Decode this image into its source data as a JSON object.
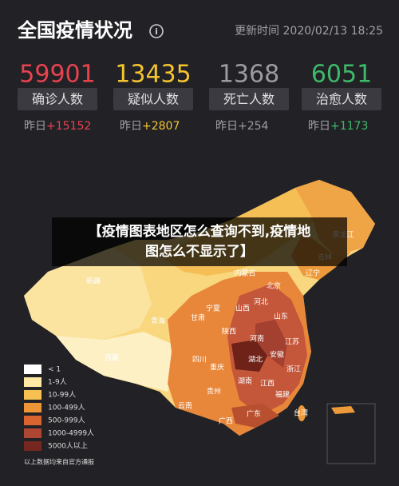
{
  "header": {
    "title": "全国疫情状况",
    "update_time": "更新时间 2020/02/13 18:25"
  },
  "stats": [
    {
      "value": "59901",
      "label": "确诊人数",
      "yesterday": "昨日",
      "delta": "+15152",
      "color": "#e8424f"
    },
    {
      "value": "13435",
      "label": "疑似人数",
      "yesterday": "昨日",
      "delta": "+2807",
      "color": "#f5c431"
    },
    {
      "value": "1368",
      "label": "死亡人数",
      "yesterday": "昨日",
      "delta": "+254",
      "color": "#9b9ba0"
    },
    {
      "value": "6051",
      "label": "治愈人数",
      "yesterday": "昨日",
      "delta": "+1173",
      "color": "#3dba6a"
    }
  ],
  "banner": {
    "lines": [
      "【疫情图表地区怎么查询不到,疫情地",
      "图怎么不显示了】"
    ]
  },
  "map": {
    "labels": [
      "新疆",
      "西藏",
      "青海",
      "甘肃",
      "宁夏",
      "内蒙古",
      "黑龙江",
      "吉林",
      "辽宁",
      "北京",
      "河北",
      "山西",
      "山东",
      "陕西",
      "河南",
      "四川",
      "湖北",
      "安徽",
      "江苏",
      "重庆",
      "湖南",
      "江西",
      "浙江",
      "贵州",
      "云南",
      "福建",
      "广西",
      "广东",
      "台湾"
    ]
  },
  "legend": {
    "items": [
      {
        "label": "< 1",
        "color": "#ffffff"
      },
      {
        "label": "1-9人",
        "color": "#fde8a4"
      },
      {
        "label": "10-99人",
        "color": "#f6c152"
      },
      {
        "label": "100-499人",
        "color": "#ee9538"
      },
      {
        "label": "500-999人",
        "color": "#d9642f"
      },
      {
        "label": "1000-4999人",
        "color": "#ad4633"
      },
      {
        "label": "5000人以上",
        "color": "#76271f"
      }
    ],
    "note": "以上数据均来自官方通报"
  }
}
